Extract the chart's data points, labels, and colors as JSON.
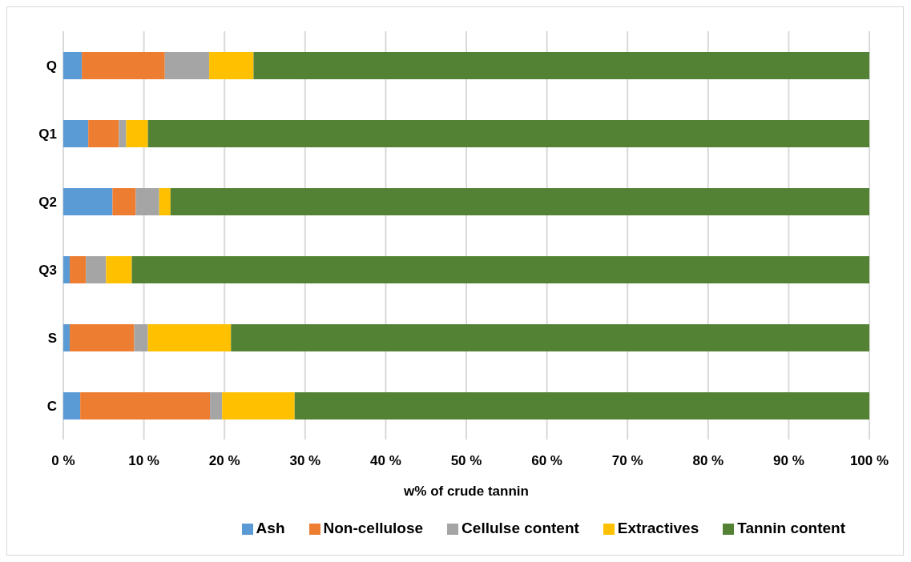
{
  "chart_data": {
    "type": "bar",
    "orientation": "horizontal",
    "stacked": true,
    "categories": [
      "Q",
      "Q1",
      "Q2",
      "Q3",
      "S",
      "C"
    ],
    "series": [
      {
        "name": "Ash",
        "color": "#5b9bd5",
        "values": [
          2.3,
          3.1,
          6.1,
          0.8,
          0.8,
          2.1
        ]
      },
      {
        "name": "Non-cellulose",
        "color": "#ed7d31",
        "values": [
          10.3,
          3.8,
          2.9,
          2.0,
          8.0,
          16.1
        ]
      },
      {
        "name": "Cellulse content",
        "color": "#a5a5a5",
        "values": [
          5.5,
          0.9,
          2.9,
          2.5,
          1.7,
          1.5
        ]
      },
      {
        "name": "Extractives",
        "color": "#ffc000",
        "values": [
          5.5,
          2.7,
          1.4,
          3.2,
          10.3,
          9.0
        ]
      },
      {
        "name": "Tannin content",
        "color": "#548235",
        "values": [
          76.4,
          89.5,
          86.7,
          91.5,
          79.2,
          71.3
        ]
      }
    ],
    "xlim": [
      0,
      100
    ],
    "xticks": [
      {
        "value": 0,
        "label": "0 %"
      },
      {
        "value": 10,
        "label": "10 %"
      },
      {
        "value": 20,
        "label": "20 %"
      },
      {
        "value": 30,
        "label": "30 %"
      },
      {
        "value": 40,
        "label": "40 %"
      },
      {
        "value": 50,
        "label": "50 %"
      },
      {
        "value": 60,
        "label": "60 %"
      },
      {
        "value": 70,
        "label": "70 %"
      },
      {
        "value": 80,
        "label": "80 %"
      },
      {
        "value": 90,
        "label": "90 %"
      },
      {
        "value": 100,
        "label": "100 %"
      }
    ],
    "xlabel": "w% of crude tannin",
    "grid": "x",
    "legend": "bottom"
  }
}
